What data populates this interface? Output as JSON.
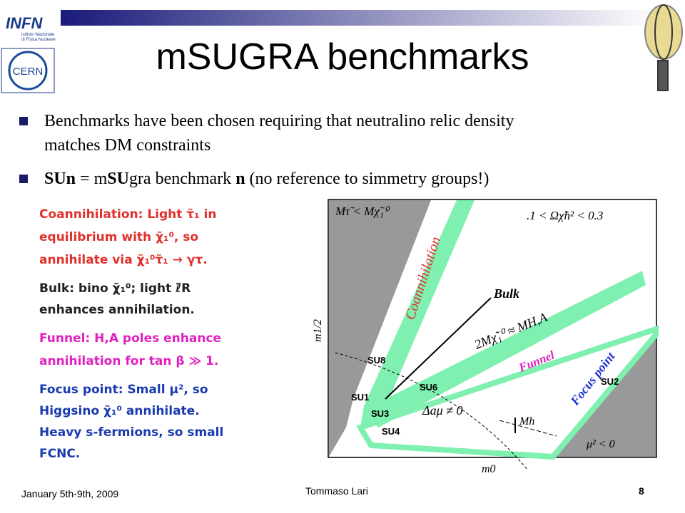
{
  "header": {
    "title": "mSUGRA benchmarks",
    "logos": {
      "infn": "INFN",
      "infn_sub": [
        "Istituto Nazionale",
        "di Fisica Nucleare"
      ],
      "cern": "CERN"
    }
  },
  "bullets": [
    {
      "lines": [
        "Benchmarks have been chosen requiring that neutralino relic density",
        "matches DM constraints"
      ]
    },
    {
      "segments": [
        "SUn",
        " = m",
        "SU",
        "gra benchmark ",
        "n",
        " (no reference to simmetry groups!)"
      ]
    }
  ],
  "left_panel": {
    "groups": [
      {
        "lines": [
          "Coannihilation: Light τ̃₁ in",
          "equilibrium with χ̃₁⁰, so",
          "annihilate via χ̃₁⁰τ̃₁ → γτ."
        ]
      },
      {
        "lines": [
          "Bulk: bino χ̃₁⁰; light ℓ̃R",
          "enhances annihilation."
        ]
      },
      {
        "lines": [
          "Funnel: H,A poles enhance",
          "annihilation for tan β ≫ 1."
        ]
      },
      {
        "lines": [
          "Focus point: Small μ², so",
          "Higgsino χ̃₁⁰ annihilate.",
          "Heavy s-fermions, so small",
          "FCNC."
        ]
      }
    ]
  },
  "plot": {
    "labels": {
      "stau": "Mτ̃ < Mχ̃₁⁰",
      "omega": ".1 < Ωχ̃h² < 0.3",
      "coann": "Coannihilation",
      "bulk": "Bulk",
      "funnel_eq": "2Mχ̃₁⁰ ≈ MH,A",
      "funnel": "Funnel",
      "focus": "Focus point",
      "amu": "Δaμ ≠ 0",
      "mh": "Mh",
      "mu": "μ² < 0",
      "ylabel": "m1/2",
      "xlabel": "m0"
    },
    "points": [
      "SU8",
      "SU6",
      "SU1",
      "SU3",
      "SU4",
      "SU2"
    ]
  },
  "footer": {
    "date": "January 5th-9th, 2009",
    "author": "Tommaso Lari",
    "page": "8"
  }
}
